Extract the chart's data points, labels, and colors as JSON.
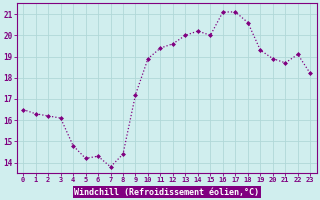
{
  "x": [
    0,
    1,
    2,
    3,
    4,
    5,
    6,
    7,
    8,
    9,
    10,
    11,
    12,
    13,
    14,
    15,
    16,
    17,
    18,
    19,
    20,
    21,
    22,
    23
  ],
  "y": [
    16.5,
    16.3,
    16.2,
    16.1,
    14.8,
    14.2,
    14.3,
    13.8,
    14.4,
    17.2,
    18.9,
    19.4,
    19.6,
    20.0,
    20.2,
    20.0,
    21.1,
    21.1,
    20.6,
    19.3,
    18.9,
    18.7,
    19.1,
    18.2
  ],
  "line_color": "#800080",
  "marker_color": "#800080",
  "bg_color": "#d0eeee",
  "plot_bg_color": "#d0eeee",
  "grid_color": "#b0d8d8",
  "xlabel": "Windchill (Refroidissement éolien,°C)",
  "xlabel_color": "#800080",
  "xlabel_bg": "#800080",
  "tick_color": "#800080",
  "spine_color": "#800080",
  "ylim": [
    13.5,
    21.5
  ],
  "yticks": [
    14,
    15,
    16,
    17,
    18,
    19,
    20,
    21
  ],
  "xlim": [
    -0.5,
    23.5
  ],
  "xtick_labels": [
    "0",
    "1",
    "2",
    "3",
    "4",
    "5",
    "6",
    "7",
    "8",
    "9",
    "10",
    "11",
    "12",
    "13",
    "14",
    "15",
    "16",
    "17",
    "18",
    "19",
    "20",
    "21",
    "22",
    "23"
  ]
}
